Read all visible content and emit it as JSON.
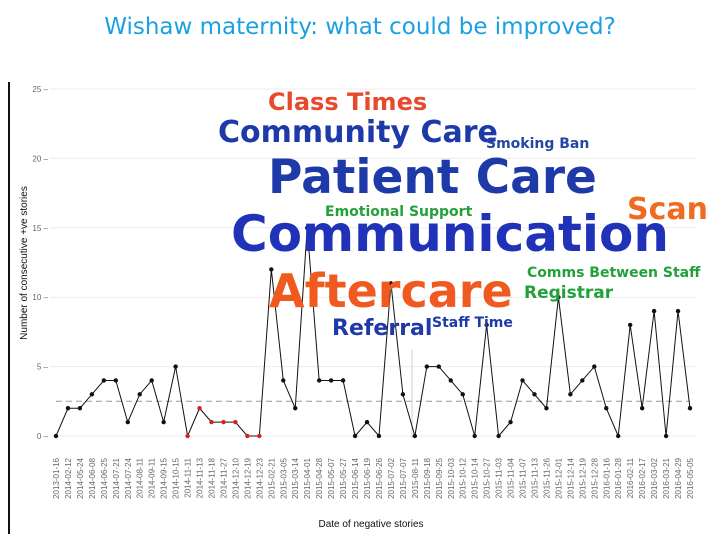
{
  "slide": {
    "title": "Wishaw maternity: what could be improved?"
  },
  "chart_data": {
    "type": "line",
    "title": "",
    "xlabel": "Date of negative stories",
    "ylabel": "Number of consecutive +ve stories",
    "ylim": [
      0,
      25
    ],
    "yticks": [
      0,
      5,
      10,
      15,
      20,
      25
    ],
    "median_line": 2.5,
    "grid": true,
    "series": [
      {
        "x": [
          "2013-01-16",
          "2014-02-12",
          "2014-05-24",
          "2014-06-08",
          "2014-06-25",
          "2014-07-21",
          "2014-07-24",
          "2014-08-11",
          "2014-09-11",
          "2014-09-15",
          "2014-10-15",
          "2014-11-11",
          "2014-11-13",
          "2014-11-18",
          "2014-11-27",
          "2014-12-10",
          "2014-12-19",
          "2014-12-23",
          "2015-02-21",
          "2015-03-05",
          "2015-03-14",
          "2015-04-01",
          "2015-04-28",
          "2015-05-07",
          "2015-05-27",
          "2015-06-14",
          "2015-06-19",
          "2015-06-26",
          "2015-07-02",
          "2015-07-07",
          "2015-08-11",
          "2015-09-18",
          "2015-09-25",
          "2015-10-03",
          "2015-10-12",
          "2015-10-14",
          "2015-10-27",
          "2015-11-03",
          "2015-11-04",
          "2015-11-07",
          "2015-11-13",
          "2015-11-26",
          "2015-12-01",
          "2015-12-14",
          "2015-12-19",
          "2015-12-28",
          "2016-01-16",
          "2016-01-28",
          "2016-02-11",
          "2016-02-17",
          "2016-03-02",
          "2016-03-21",
          "2016-04-29",
          "2016-05-05"
        ],
        "values": [
          0,
          2,
          2,
          3,
          4,
          4,
          1,
          3,
          4,
          1,
          5,
          0,
          2,
          1,
          1,
          1,
          0,
          0,
          12,
          4,
          2,
          15,
          4,
          4,
          4,
          0,
          1,
          0,
          11,
          3,
          0,
          5,
          5,
          4,
          3,
          0,
          8,
          0,
          1,
          4,
          3,
          2,
          10,
          3,
          4,
          5,
          2,
          0,
          8,
          2,
          9,
          0,
          9,
          2
        ],
        "red_points": [
          11,
          12,
          13,
          14,
          15,
          16,
          17
        ]
      }
    ]
  },
  "word_cloud": [
    {
      "text": "Class Times",
      "color": "#e8492a"
    },
    {
      "text": "Community Care",
      "color": "#1e3aa8"
    },
    {
      "text": "Smoking Ban",
      "color": "#2547a3"
    },
    {
      "text": "Patient Care",
      "color": "#1e3aa8"
    },
    {
      "text": "Emotional Support",
      "color": "#22a13a"
    },
    {
      "text": "Scan",
      "color": "#f06a22"
    },
    {
      "text": "Communication",
      "color": "#2033b8"
    },
    {
      "text": "Comms Between Staff",
      "color": "#22a13a"
    },
    {
      "text": "Aftercare",
      "color": "#f05a20"
    },
    {
      "text": "Registrar",
      "color": "#22a13a"
    },
    {
      "text": "Referral",
      "color": "#1e3aa8"
    },
    {
      "text": "Staff Time",
      "color": "#1e3aa8"
    }
  ]
}
